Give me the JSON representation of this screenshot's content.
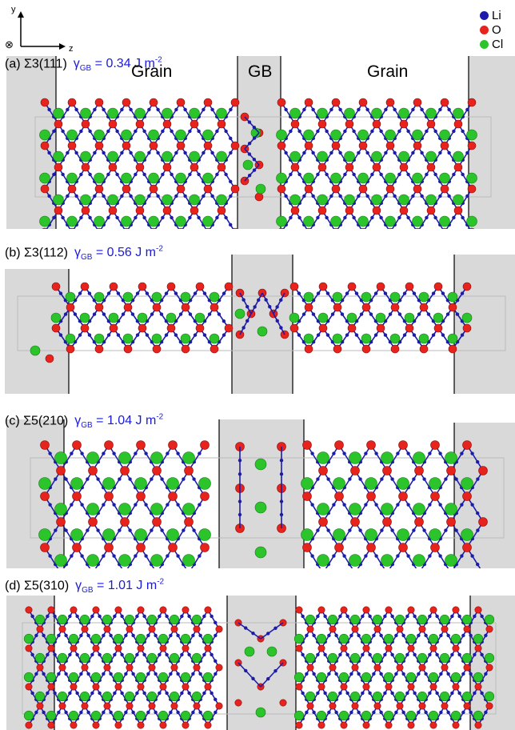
{
  "axes": {
    "y": "y",
    "z": "z",
    "x_symbol": "⊗"
  },
  "legend": [
    {
      "label": "Li",
      "color": "#1c1ca8"
    },
    {
      "label": "O",
      "color": "#e8221c"
    },
    {
      "label": "Cl",
      "color": "#2bc42b"
    }
  ],
  "panels": [
    {
      "label": "(a) Σ3(111)",
      "gamma_sym": "γ",
      "gamma_sub": "GB",
      "gamma_val": "= 0.34 J m",
      "gamma_sup": "-2",
      "regions": {
        "grain_left": "Grain",
        "gb": "GB",
        "grain_right": "Grain"
      }
    },
    {
      "label": "(b) Σ3(112)",
      "gamma_sym": "γ",
      "gamma_sub": "GB",
      "gamma_val": "= 0.56 J m",
      "gamma_sup": "-2"
    },
    {
      "label": "(c) Σ5(210)",
      "gamma_sym": "γ",
      "gamma_sub": "GB",
      "gamma_val": "= 1.04 J m",
      "gamma_sup": "-2"
    },
    {
      "label": "(d) Σ5(310)",
      "gamma_sym": "γ",
      "gamma_sub": "GB",
      "gamma_val": "= 1.01 J m",
      "gamma_sup": "-2"
    }
  ],
  "colors": {
    "li": "#1c1ca8",
    "o": "#e8221c",
    "cl": "#2bc42b",
    "shade": "#d9d9d9"
  }
}
